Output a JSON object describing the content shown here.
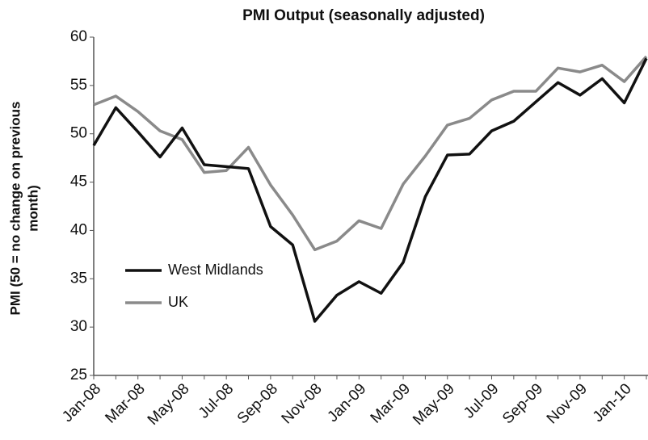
{
  "chart_data": {
    "type": "line",
    "title": "PMI Output (seasonally adjusted)",
    "y_label": [
      "PMI (50 = no change on previous",
      "month)"
    ],
    "categories": [
      "Jan-08",
      null,
      "Mar-08",
      null,
      "May-08",
      null,
      "Jul-08",
      null,
      "Sep-08",
      null,
      "Nov-08",
      null,
      "Jan-09",
      null,
      "Mar-09",
      null,
      "May-09",
      null,
      "Jul-09",
      null,
      "Sep-09",
      null,
      "Nov-09",
      null,
      "Jan-10",
      null
    ],
    "series": [
      {
        "name": "West Midlands",
        "color": "#111111",
        "values": [
          48.8,
          52.7,
          50.2,
          47.6,
          50.6,
          46.8,
          46.6,
          46.4,
          40.4,
          38.5,
          30.6,
          33.3,
          34.7,
          33.5,
          36.7,
          43.5,
          47.8,
          47.9,
          50.3,
          51.3,
          53.3,
          55.3,
          54.0,
          55.7,
          53.2,
          57.8
        ]
      },
      {
        "name": "UK",
        "color": "#8a8a8a",
        "values": [
          53.0,
          53.9,
          52.3,
          50.3,
          49.4,
          46.0,
          46.2,
          48.6,
          44.7,
          41.6,
          38.0,
          38.9,
          41.0,
          40.2,
          44.8,
          47.7,
          50.9,
          51.6,
          53.5,
          54.4,
          54.4,
          56.8,
          56.4,
          57.1,
          55.4,
          58.0
        ]
      }
    ],
    "ylim": [
      25,
      60
    ],
    "yticks": [
      25,
      30,
      35,
      40,
      45,
      50,
      55,
      60
    ],
    "grid": false
  }
}
